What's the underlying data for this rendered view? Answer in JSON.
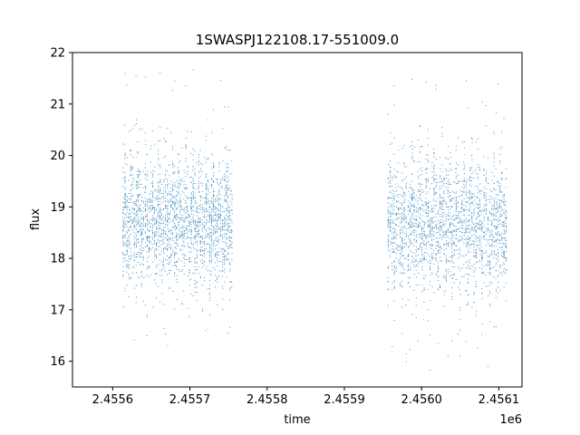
{
  "chart_data": {
    "type": "scatter",
    "title": "1SWASPJ122108.17-551009.0",
    "xlabel": "time",
    "ylabel": "flux",
    "x_offset_label": "1e6",
    "xlim": [
      2455548,
      2456130
    ],
    "ylim": [
      15.5,
      22
    ],
    "x_ticks": [
      2455600,
      2455700,
      2455800,
      2455900,
      2456000,
      2456100
    ],
    "x_tick_labels": [
      "2.4556",
      "2.4557",
      "2.4558",
      "2.4559",
      "2.4560",
      "2.4561"
    ],
    "y_ticks": [
      16,
      17,
      18,
      19,
      20,
      21,
      22
    ],
    "y_tick_labels": [
      "16",
      "17",
      "18",
      "19",
      "20",
      "21",
      "22"
    ],
    "grid": false,
    "series_color": "#1f77b4",
    "segments": [
      {
        "x_start": 2455612,
        "x_end": 2455755,
        "y_center": 18.75,
        "y_spread": 0.75,
        "y_min": 16.3,
        "y_max": 21.7
      },
      {
        "x_start": 2455955,
        "x_end": 2456110,
        "y_center": 18.7,
        "y_spread": 0.8,
        "y_min": 15.8,
        "y_max": 21.6
      }
    ]
  }
}
